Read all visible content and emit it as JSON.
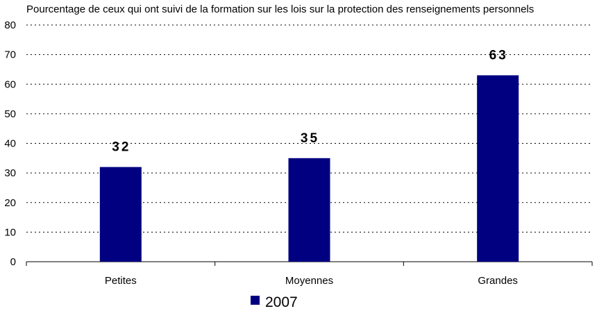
{
  "chart_data": {
    "type": "bar",
    "title": "Pourcentage de ceux qui ont suivi de la formation sur les lois sur la protection des renseignements personnels",
    "categories": [
      "Petites",
      "Moyennes",
      "Grandes"
    ],
    "series": [
      {
        "name": "2007",
        "values": [
          32,
          35,
          63
        ],
        "color": "#000080"
      }
    ],
    "data_labels": [
      "32",
      "35",
      "63"
    ],
    "ylim": [
      0,
      80
    ],
    "yticks": [
      0,
      10,
      20,
      30,
      40,
      50,
      60,
      70,
      80
    ],
    "grid": "dotted horizontal",
    "legend_position": "bottom"
  }
}
